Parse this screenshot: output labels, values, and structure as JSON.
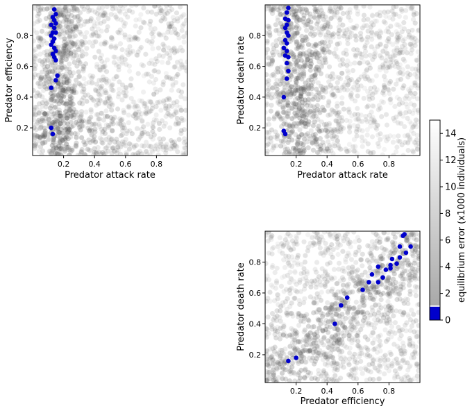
{
  "chart_data": [
    {
      "type": "scatter",
      "xlabel": "Predator attack rate",
      "ylabel": "Predator efficiency",
      "xlim": [
        0.0,
        1.0
      ],
      "ylim": [
        0.02,
        1.0
      ],
      "xticks": [
        "0.2",
        "0.4",
        "0.6",
        "0.8"
      ],
      "yticks": [
        "0.2",
        "0.4",
        "0.6",
        "0.8"
      ],
      "background_pattern": "gray cloud of sampled parameter points; darkest near attack rate 0.1-0.25 and along lower-left band",
      "highlight_color": "#0000cc",
      "highlight_points": [
        [
          0.14,
          0.97
        ],
        [
          0.15,
          0.94
        ],
        [
          0.13,
          0.92
        ],
        [
          0.14,
          0.9
        ],
        [
          0.15,
          0.88
        ],
        [
          0.12,
          0.87
        ],
        [
          0.14,
          0.85
        ],
        [
          0.13,
          0.82
        ],
        [
          0.15,
          0.82
        ],
        [
          0.12,
          0.8
        ],
        [
          0.14,
          0.78
        ],
        [
          0.13,
          0.76
        ],
        [
          0.12,
          0.74
        ],
        [
          0.14,
          0.72
        ],
        [
          0.15,
          0.7
        ],
        [
          0.13,
          0.68
        ],
        [
          0.14,
          0.66
        ],
        [
          0.15,
          0.64
        ],
        [
          0.16,
          0.54
        ],
        [
          0.15,
          0.51
        ],
        [
          0.12,
          0.46
        ],
        [
          0.12,
          0.2
        ],
        [
          0.13,
          0.16
        ]
      ]
    },
    {
      "type": "scatter",
      "xlabel": "Predator attack rate",
      "ylabel": "Predator death rate",
      "xlim": [
        0.0,
        1.0
      ],
      "ylim": [
        0.02,
        1.0
      ],
      "xticks": [
        "0.2",
        "0.4",
        "0.6",
        "0.8"
      ],
      "yticks": [
        "0.2",
        "0.4",
        "0.6",
        "0.8"
      ],
      "background_pattern": "gray cloud; darkest near attack rate 0.1-0.35 across death rates",
      "highlight_color": "#0000cc",
      "highlight_points": [
        [
          0.15,
          0.98
        ],
        [
          0.14,
          0.95
        ],
        [
          0.13,
          0.91
        ],
        [
          0.15,
          0.9
        ],
        [
          0.14,
          0.87
        ],
        [
          0.13,
          0.85
        ],
        [
          0.14,
          0.82
        ],
        [
          0.15,
          0.8
        ],
        [
          0.13,
          0.77
        ],
        [
          0.14,
          0.75
        ],
        [
          0.12,
          0.72
        ],
        [
          0.14,
          0.7
        ],
        [
          0.13,
          0.67
        ],
        [
          0.15,
          0.66
        ],
        [
          0.14,
          0.62
        ],
        [
          0.15,
          0.57
        ],
        [
          0.14,
          0.52
        ],
        [
          0.12,
          0.4
        ],
        [
          0.12,
          0.18
        ],
        [
          0.13,
          0.16
        ]
      ]
    },
    {
      "type": "scatter",
      "xlabel": "Predator efficiency",
      "ylabel": "Predator death rate",
      "xlim": [
        0.0,
        1.0
      ],
      "ylim": [
        0.02,
        1.0
      ],
      "xticks": [
        "0.2",
        "0.4",
        "0.6",
        "0.8"
      ],
      "yticks": [
        "0.2",
        "0.4",
        "0.6",
        "0.8"
      ],
      "background_pattern": "gray cloud; darker along the diagonal where death rate tracks efficiency",
      "highlight_color": "#0000cc",
      "highlight_points": [
        [
          0.15,
          0.16
        ],
        [
          0.2,
          0.18
        ],
        [
          0.45,
          0.4
        ],
        [
          0.49,
          0.52
        ],
        [
          0.53,
          0.57
        ],
        [
          0.63,
          0.62
        ],
        [
          0.67,
          0.67
        ],
        [
          0.69,
          0.72
        ],
        [
          0.73,
          0.67
        ],
        [
          0.73,
          0.77
        ],
        [
          0.76,
          0.7
        ],
        [
          0.78,
          0.75
        ],
        [
          0.81,
          0.76
        ],
        [
          0.81,
          0.78
        ],
        [
          0.82,
          0.82
        ],
        [
          0.85,
          0.79
        ],
        [
          0.87,
          0.83
        ],
        [
          0.87,
          0.9
        ],
        [
          0.89,
          0.97
        ],
        [
          0.9,
          0.98
        ],
        [
          0.91,
          0.86
        ],
        [
          0.94,
          0.9
        ]
      ]
    }
  ],
  "colorbar": {
    "label": "equilibrium error (x1000 individuals)",
    "range": [
      0,
      15
    ],
    "ticks": [
      "0",
      "2",
      "4",
      "6",
      "8",
      "10",
      "12",
      "14"
    ],
    "low_color": "#0000cc",
    "low_threshold": 1,
    "gradient": "light gray (#b0b0b0) at 1 to white at 15"
  }
}
